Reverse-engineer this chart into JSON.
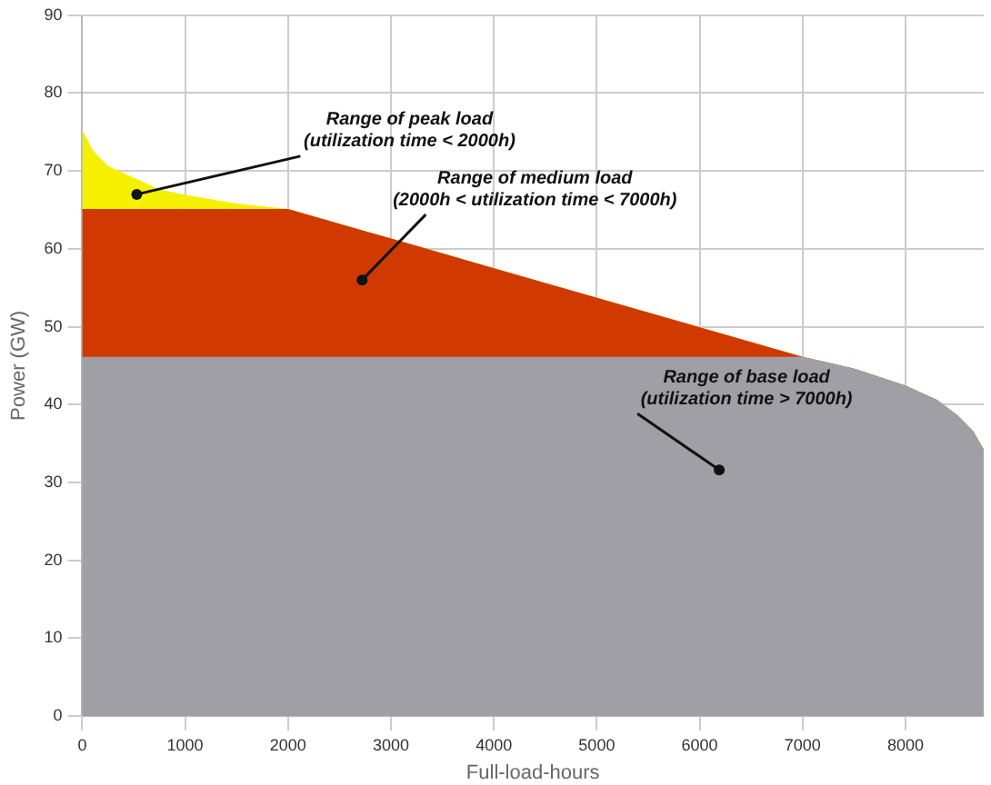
{
  "chart_data": {
    "type": "area",
    "stacked": true,
    "xlabel": "Full-load-hours",
    "ylabel": "Power (GW)",
    "x": [
      0,
      100,
      250,
      500,
      750,
      1000,
      1500,
      2000,
      3000,
      4000,
      5000,
      6000,
      7000,
      7500,
      8000,
      8300,
      8500,
      8650,
      8760
    ],
    "series": [
      {
        "color": "#a09fa5",
        "values": [
          46,
          46,
          46,
          46,
          46,
          46,
          46,
          46,
          46,
          46,
          46,
          46,
          46,
          44.5,
          42.3,
          40.5,
          38.5,
          36.5,
          34
        ]
      },
      {
        "color": "#d03a00",
        "values": [
          19,
          19,
          19,
          19,
          19,
          19,
          19,
          19,
          15.2,
          11.4,
          7.6,
          3.8,
          0,
          0,
          0,
          0,
          0,
          0,
          0
        ]
      },
      {
        "color": "#f5f000",
        "values": [
          10,
          7.5,
          5.5,
          4,
          2.5,
          1.8,
          0.7,
          0,
          0,
          0,
          0,
          0,
          0,
          0,
          0,
          0,
          0,
          0,
          0
        ]
      }
    ],
    "xlim": [
      0,
      8760
    ],
    "xticks": [
      0,
      1000,
      2000,
      3000,
      4000,
      5000,
      6000,
      7000,
      8000
    ],
    "ylim": [
      0,
      90
    ],
    "yticks": [
      0,
      10,
      20,
      30,
      40,
      50,
      60,
      70,
      80,
      90
    ],
    "grid": true,
    "annotations": [
      {
        "text": "Range of peak load\n(utilization time < 2000h)",
        "x": 530,
        "y": 67
      },
      {
        "text": "Range of medium load\n(2000h < utilization time < 7000h)",
        "x": 2720,
        "y": 56
      },
      {
        "text": "Range of base load\n(utilization time > 7000h)",
        "x": 6190,
        "y": 31.6
      }
    ]
  }
}
